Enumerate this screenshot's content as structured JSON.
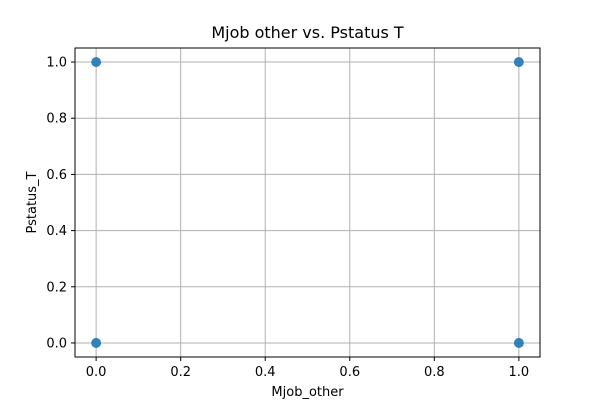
{
  "chart_data": {
    "type": "scatter",
    "title": "Mjob other vs. Pstatus T",
    "xlabel": "Mjob_other",
    "ylabel": "Pstatus_T",
    "xlim": [
      -0.05,
      1.05
    ],
    "ylim": [
      -0.05,
      1.05
    ],
    "xticks": [
      0.0,
      0.2,
      0.4,
      0.6,
      0.8,
      1.0
    ],
    "yticks": [
      0.0,
      0.2,
      0.4,
      0.6,
      0.8,
      1.0
    ],
    "xtick_labels": [
      "0.0",
      "0.2",
      "0.4",
      "0.6",
      "0.8",
      "1.0"
    ],
    "ytick_labels": [
      "0.0",
      "0.2",
      "0.4",
      "0.6",
      "0.8",
      "1.0"
    ],
    "grid": true,
    "series": [
      {
        "name": "Pstatus_T",
        "color": "#1f77b4",
        "points": [
          {
            "x": 0,
            "y": 1
          },
          {
            "x": 0,
            "y": 0
          },
          {
            "x": 1,
            "y": 1
          },
          {
            "x": 1,
            "y": 0
          }
        ]
      }
    ]
  }
}
